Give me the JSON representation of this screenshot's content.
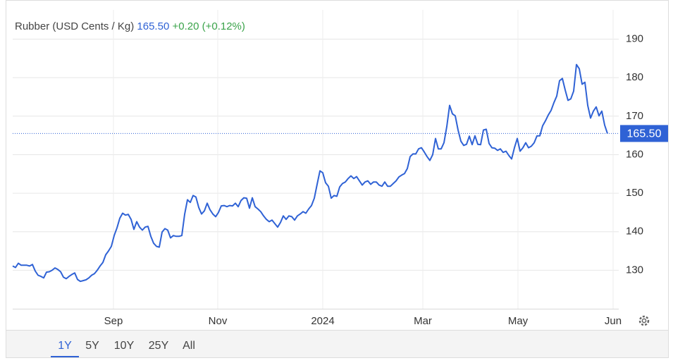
{
  "chart_data": {
    "type": "line",
    "title": "Rubber (USD Cents / Kg)",
    "price": "165.50",
    "change": "+0.20 (+0.12%)",
    "color": "#2f62d5",
    "change_color": "#3aa34a",
    "grid": true,
    "values": [
      131.1,
      130.7,
      131.8,
      131.3,
      131.3,
      131.3,
      131.1,
      131.5,
      129.8,
      128.7,
      128.4,
      128.0,
      129.5,
      129.6,
      130.0,
      130.6,
      130.2,
      129.6,
      128.2,
      127.8,
      128.4,
      128.9,
      129.3,
      127.6,
      127.1,
      127.3,
      127.5,
      128.0,
      128.7,
      129.1,
      130.0,
      131.1,
      132.0,
      134.0,
      135.0,
      136.2,
      139.0,
      141.0,
      143.5,
      144.8,
      144.3,
      144.5,
      143.2,
      140.6,
      142.6,
      141.2,
      140.4,
      141.2,
      141.4,
      138.8,
      137.0,
      136.2,
      136.0,
      139.9,
      140.8,
      140.4,
      138.4,
      139.0,
      138.8,
      138.8,
      139.0,
      144.5,
      148.3,
      147.6,
      149.4,
      149.0,
      146.3,
      144.6,
      145.4,
      147.4,
      145.7,
      144.6,
      143.9,
      145.0,
      146.7,
      146.8,
      146.5,
      146.8,
      146.7,
      147.4,
      146.5,
      148.1,
      148.8,
      148.7,
      146.1,
      148.8,
      146.5,
      145.9,
      145.2,
      144.1,
      143.2,
      142.6,
      143.0,
      142.1,
      141.2,
      142.4,
      144.1,
      143.2,
      144.1,
      143.9,
      143.0,
      144.1,
      144.6,
      145.2,
      144.8,
      145.9,
      146.8,
      148.7,
      152.3,
      155.8,
      155.3,
      152.7,
      151.8,
      148.7,
      149.4,
      149.2,
      151.6,
      152.5,
      152.9,
      153.8,
      154.5,
      153.8,
      154.3,
      153.2,
      152.1,
      152.9,
      153.2,
      152.3,
      152.9,
      152.9,
      152.1,
      151.8,
      152.9,
      151.8,
      151.8,
      152.5,
      153.2,
      154.2,
      154.7,
      155.1,
      156.4,
      159.5,
      160.2,
      160.2,
      161.5,
      161.8,
      160.7,
      159.5,
      158.5,
      160.0,
      164.2,
      161.5,
      161.5,
      163.1,
      167.3,
      172.8,
      170.6,
      170.1,
      166.4,
      163.5,
      162.4,
      162.7,
      164.8,
      162.6,
      164.9,
      162.7,
      162.6,
      166.4,
      166.6,
      162.9,
      161.8,
      161.7,
      161.1,
      161.5,
      160.6,
      160.9,
      159.8,
      158.9,
      161.8,
      164.2,
      160.9,
      161.8,
      163.1,
      161.8,
      162.2,
      163.1,
      164.9,
      164.9,
      167.5,
      168.8,
      170.3,
      171.5,
      173.5,
      175.2,
      179.2,
      179.8,
      176.8,
      174.1,
      174.5,
      176.5,
      183.4,
      182.3,
      178.3,
      178.8,
      172.8,
      169.5,
      171.3,
      172.4,
      170.1,
      171.3,
      167.7,
      165.5
    ],
    "xlim": [
      0,
      215
    ],
    "xticks": [
      {
        "value": 35.75,
        "label": "Sep"
      },
      {
        "value": 72.75,
        "label": "Nov"
      },
      {
        "value": 110,
        "label": "2024"
      },
      {
        "value": 145.5,
        "label": "Mar"
      },
      {
        "value": 179.25,
        "label": "May"
      },
      {
        "value": 213,
        "label": "Jun"
      }
    ],
    "ylim": [
      120,
      197.6
    ],
    "yticks": [
      130,
      140,
      150,
      160,
      170,
      180,
      190
    ]
  },
  "range_buttons": [
    "1Y",
    "5Y",
    "10Y",
    "25Y",
    "All"
  ]
}
